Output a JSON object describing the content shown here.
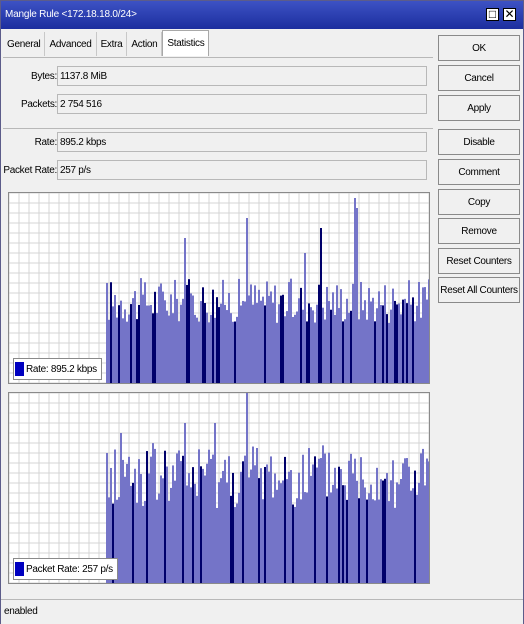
{
  "window": {
    "title": "Mangle Rule <172.18.18.0/24>"
  },
  "title_buttons": {
    "restore_icon": "□",
    "close_icon": "✕"
  },
  "tabs": [
    {
      "label": "General"
    },
    {
      "label": "Advanced"
    },
    {
      "label": "Extra"
    },
    {
      "label": "Action"
    },
    {
      "label": "Statistics",
      "active": true
    }
  ],
  "stats": {
    "bytes_label": "Bytes:",
    "bytes_value": "1137.8 MiB",
    "packets_label": "Packets:",
    "packets_value": "2 754 516",
    "rate_label": "Rate:",
    "rate_value": "895.2 kbps",
    "packet_rate_label": "Packet Rate:",
    "packet_rate_value": "257 p/s"
  },
  "graphs": {
    "rate_legend": "Rate:  895.2 kbps",
    "packet_rate_legend": "Packet Rate:  257 p/s",
    "bar_color": "#7474c8",
    "line_color": "#00006a"
  },
  "buttons": {
    "ok": "OK",
    "cancel": "Cancel",
    "apply": "Apply",
    "disable": "Disable",
    "comment": "Comment",
    "copy": "Copy",
    "remove": "Remove",
    "reset_counters": "Reset Counters",
    "reset_all_counters": "Reset All Counters"
  },
  "status": {
    "text": "enabled"
  }
}
